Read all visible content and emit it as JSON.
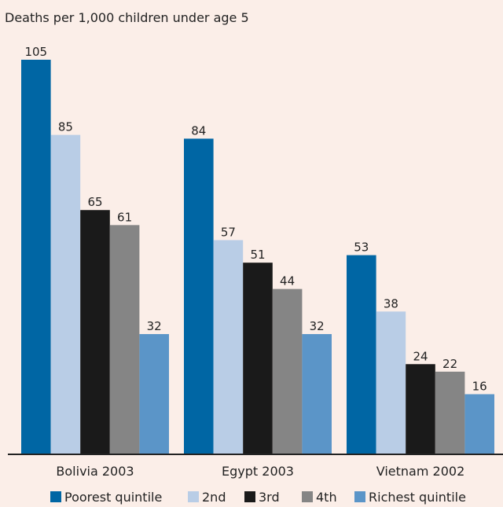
{
  "chart_data": {
    "type": "bar",
    "title": "Deaths per 1,000 children under age 5",
    "categories": [
      "Bolivia 2003",
      "Egypt 2003",
      "Vietnam 2002"
    ],
    "series": [
      {
        "name": "Poorest quintile",
        "color": "#0066a4",
        "values": [
          105,
          84,
          53
        ]
      },
      {
        "name": "2nd",
        "color": "#b9cde6",
        "values": [
          85,
          57,
          38
        ]
      },
      {
        "name": "3rd",
        "color": "#1a1a1a",
        "values": [
          65,
          51,
          24
        ]
      },
      {
        "name": "4th",
        "color": "#858585",
        "values": [
          61,
          44,
          22
        ]
      },
      {
        "name": "Richest quintile",
        "color": "#5b95c8",
        "values": [
          32,
          32,
          16
        ]
      }
    ],
    "ylim": [
      0,
      105
    ],
    "grid": false,
    "legend_position": "bottom"
  }
}
